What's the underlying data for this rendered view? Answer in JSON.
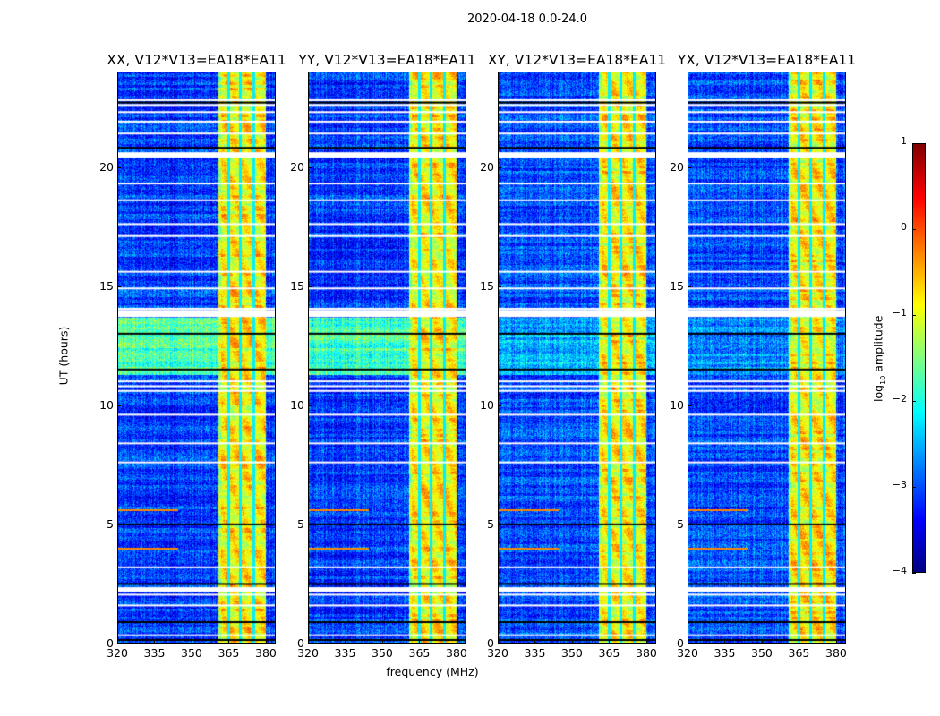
{
  "chart_data": {
    "type": "heatmap",
    "title": "2020-04-18 0.0-24.0",
    "xlabel": "frequency (MHz)",
    "ylabel": "UT (hours)",
    "xlim": [
      320,
      384
    ],
    "ylim": [
      0,
      24
    ],
    "xticks": [
      "320",
      "335",
      "350",
      "365",
      "380"
    ],
    "xtick_values": [
      320,
      335,
      350,
      365,
      380
    ],
    "yticks": [
      "0",
      "5",
      "10",
      "15",
      "20"
    ],
    "ytick_values": [
      0,
      5,
      10,
      15,
      20
    ],
    "panels": [
      {
        "title": "XX, V12*V13=EA18*EA11",
        "background_level": -3.1,
        "band_11_14_level": -1.8
      },
      {
        "title": "YY, V12*V13=EA18*EA11",
        "background_level": -3.1,
        "band_11_14_level": -1.8
      },
      {
        "title": "XY, V12*V13=EA18*EA11",
        "background_level": -3.0,
        "band_11_14_level": -2.5
      },
      {
        "title": "YX, V12*V13=EA18*EA11",
        "background_level": -3.0,
        "band_11_14_level": -2.6
      }
    ],
    "bright_band_MHz": [
      360.5,
      380
    ],
    "bright_band_level": -0.8,
    "gap_channels_MHz": [
      365,
      369.7,
      375
    ],
    "flagged_rows_hours": [
      0.35,
      1.6,
      2.05,
      3.2,
      7.6,
      8.4,
      9.6,
      10.6,
      10.8,
      11.0,
      13.75,
      13.9,
      14.05,
      14.9,
      15.6,
      17.1,
      17.6,
      18.6,
      19.3,
      20.55,
      21.4,
      21.9,
      22.3,
      22.6,
      22.8
    ],
    "black_rows_hours": [
      0.15,
      0.9,
      2.3,
      2.5,
      5.0,
      11.5,
      13.0,
      20.8,
      22.7
    ],
    "rfi_rows_hours": [
      4.0,
      5.6
    ],
    "colorbar": {
      "label_prefix": "log",
      "label_sub": "10",
      "label_suffix": " amplitude",
      "range": [
        -4,
        1
      ],
      "ticks": [
        "1",
        "0",
        "−1",
        "−2",
        "−3",
        "−4"
      ],
      "tick_values": [
        1,
        0,
        -1,
        -2,
        -3,
        -4
      ],
      "colormap": "jet"
    }
  }
}
